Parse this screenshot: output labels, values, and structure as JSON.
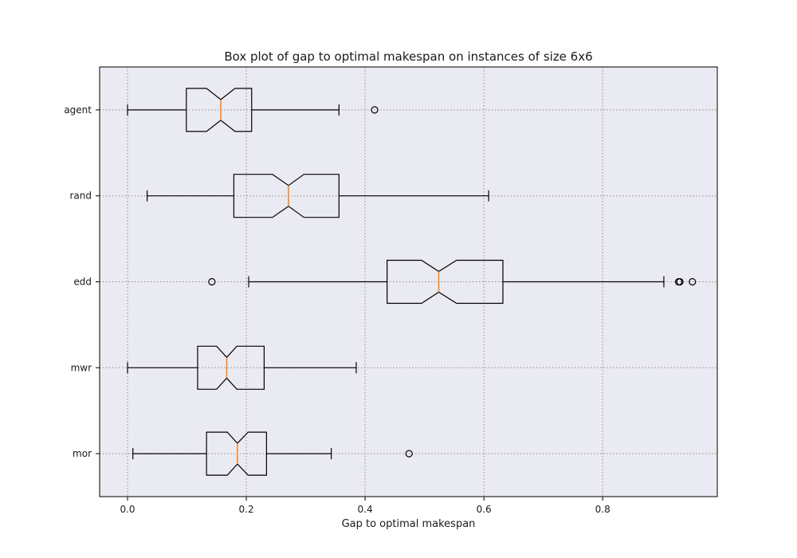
{
  "chart_data": {
    "type": "boxplot",
    "title": "Box plot of gap to optimal makespan on instances of size 6x6",
    "xlabel": "Gap to optimal makespan",
    "ylabel": "",
    "xlim": [
      -0.047,
      0.993
    ],
    "xticks": [
      0.0,
      0.2,
      0.4,
      0.6,
      0.8
    ],
    "xtick_labels": [
      "0.0",
      "0.2",
      "0.4",
      "0.6",
      "0.8"
    ],
    "orientation": "horizontal",
    "notched": true,
    "grid": true,
    "categories": [
      "agent",
      "rand",
      "edd",
      "mwr",
      "mor"
    ],
    "series": [
      {
        "name": "agent",
        "whisker_low": 0.0,
        "q1": 0.099,
        "median": 0.157,
        "q3": 0.209,
        "whisker_high": 0.356,
        "notch_low": 0.133,
        "notch_high": 0.181,
        "outliers": [
          0.416
        ]
      },
      {
        "name": "rand",
        "whisker_low": 0.033,
        "q1": 0.179,
        "median": 0.271,
        "q3": 0.356,
        "whisker_high": 0.608,
        "notch_low": 0.244,
        "notch_high": 0.297,
        "outliers": []
      },
      {
        "name": "edd",
        "whisker_low": 0.204,
        "q1": 0.437,
        "median": 0.524,
        "q3": 0.632,
        "whisker_high": 0.903,
        "notch_low": 0.495,
        "notch_high": 0.554,
        "outliers": [
          0.142,
          0.928,
          0.93,
          0.951
        ]
      },
      {
        "name": "mwr",
        "whisker_low": 0.0,
        "q1": 0.118,
        "median": 0.167,
        "q3": 0.23,
        "whisker_high": 0.385,
        "notch_low": 0.15,
        "notch_high": 0.184,
        "outliers": []
      },
      {
        "name": "mor",
        "whisker_low": 0.009,
        "q1": 0.133,
        "median": 0.185,
        "q3": 0.234,
        "whisker_high": 0.343,
        "notch_low": 0.168,
        "notch_high": 0.203,
        "outliers": [
          0.474
        ]
      }
    ]
  },
  "colors": {
    "background": "#ffffff",
    "plot_background": "#eaeaf2",
    "box": "#000000",
    "median": "#ff7f0e",
    "grid": "#8c8c8c",
    "spine": "#000000",
    "text": "#1a1a1a"
  }
}
